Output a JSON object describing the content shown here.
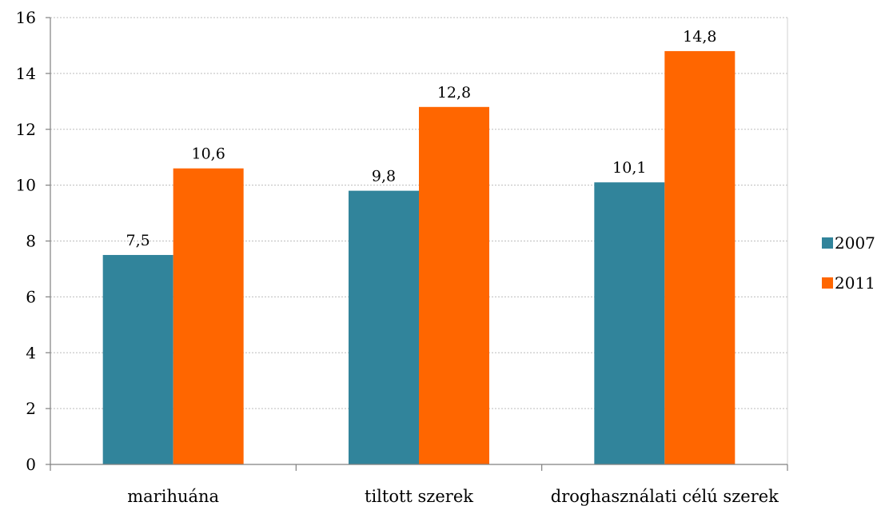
{
  "chart_data": {
    "type": "bar",
    "categories": [
      "marihuána",
      "tiltott szerek",
      "droghasználati célú szerek"
    ],
    "series": [
      {
        "name": "2007",
        "values": [
          7.5,
          9.8,
          10.1
        ],
        "labels": [
          "7,5",
          "9,8",
          "10,1"
        ],
        "color": "#31849b"
      },
      {
        "name": "2011",
        "values": [
          10.6,
          12.8,
          14.8
        ],
        "labels": [
          "10,6",
          "12,8",
          "14,8"
        ],
        "color": "#ff6600"
      }
    ],
    "ylim": [
      0,
      16
    ],
    "yticks": [
      0,
      2,
      4,
      6,
      8,
      10,
      12,
      14,
      16
    ],
    "grid": true,
    "legend_position": "right"
  }
}
